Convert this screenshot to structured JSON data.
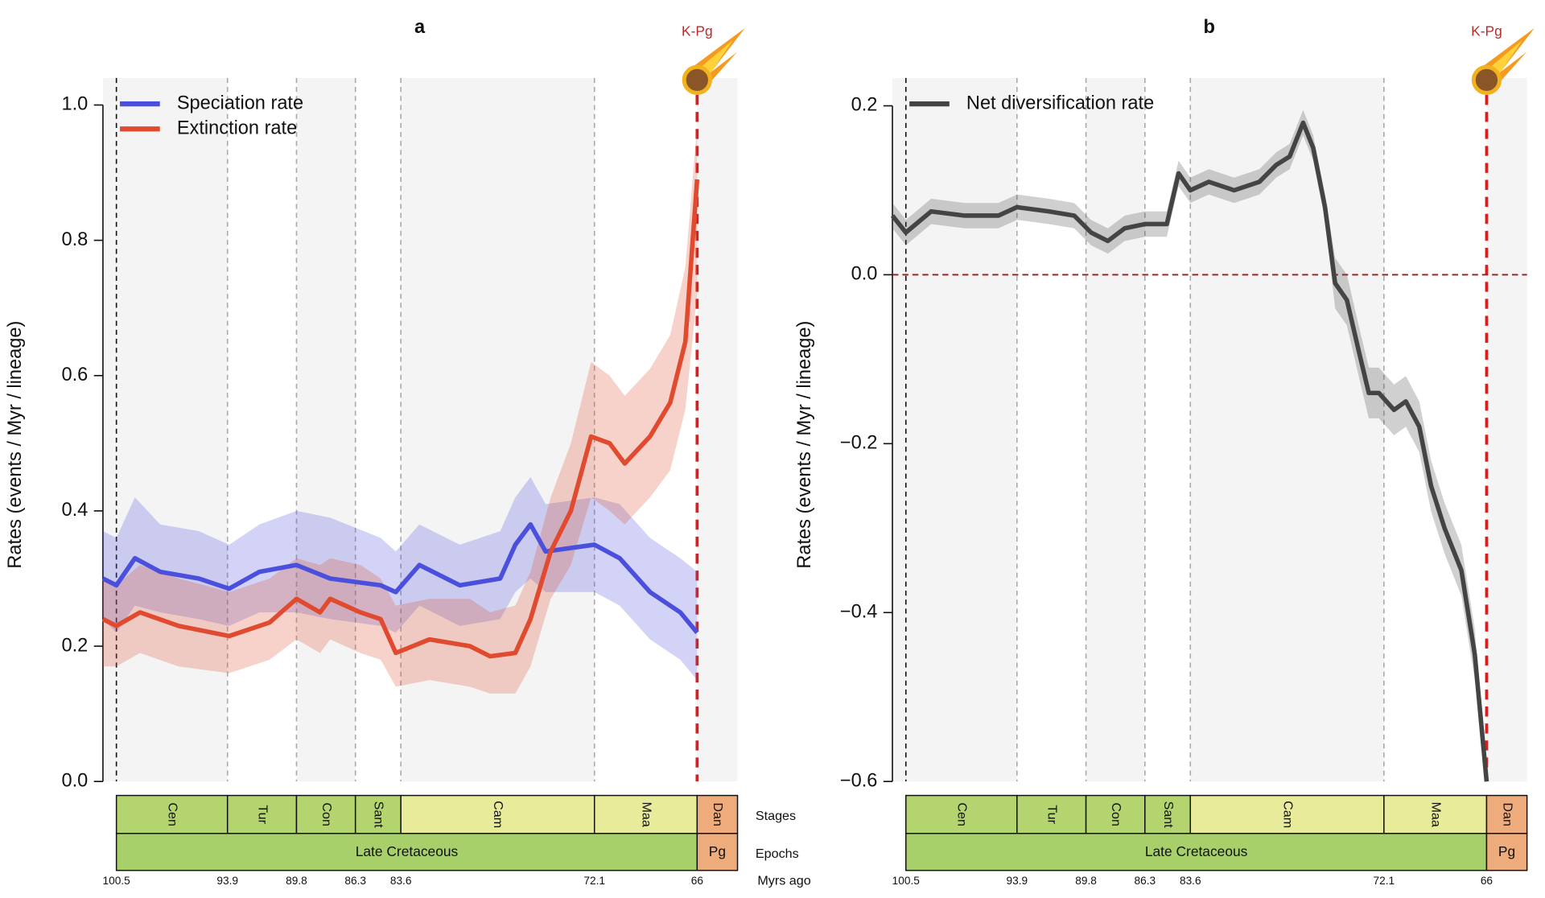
{
  "chart_data": [
    {
      "type": "line",
      "title": "a",
      "annotation": "K-Pg",
      "y_label": "Rates (events / Myr / lineage)",
      "stage_row_label": "Stages",
      "epoch_row_label": "Epochs",
      "x_unit_label": "Myrs ago",
      "xlim": [
        101.3,
        63.6
      ],
      "xticks": [
        100.5,
        93.9,
        89.8,
        86.3,
        83.6,
        72.1,
        66
      ],
      "ylim": [
        0,
        1.04
      ],
      "yticks": [
        {
          "value": 0,
          "label": "0.0"
        },
        0.2,
        0.4,
        0.6,
        0.8,
        {
          "value": 1,
          "label": "1.0"
        }
      ],
      "legend": "upper left",
      "background": "#f4f4f4",
      "stages": [
        {
          "name": "Cen",
          "start": 100.5,
          "color": "#b3d46f"
        },
        {
          "name": "Tur",
          "start": 93.9,
          "color": "#b3d46f"
        },
        {
          "name": "Con",
          "start": 89.8,
          "color": "#b3d46f"
        },
        {
          "name": "Sant",
          "start": 86.3,
          "color": "#b3d46f"
        },
        {
          "name": "Cam",
          "start": 83.6,
          "color": "#e8eb9a"
        },
        {
          "name": "Maa",
          "start": 72.1,
          "color": "#e8eb9a"
        },
        {
          "name": "Dan",
          "start": 66,
          "color": "#eeac7c"
        }
      ],
      "epochs": [
        {
          "name": "Late Cretaceous",
          "start": 100.5,
          "color": "#a8d06a"
        },
        {
          "name": "Pg",
          "start": 66,
          "color": "#eeac7c"
        }
      ],
      "series": [
        {
          "name": "Speciation rate",
          "color": "#4a4fdc",
          "x": [
            101.3,
            100.5,
            99.4,
            97.9,
            95.6,
            93.8,
            92,
            89.8,
            87.8,
            84.8,
            83.9,
            82.5,
            80.1,
            77.7,
            76.8,
            75.9,
            75,
            72.1,
            70.6,
            68.8,
            67,
            66
          ],
          "values": [
            0.3,
            0.29,
            0.33,
            0.31,
            0.3,
            0.285,
            0.31,
            0.32,
            0.3,
            0.29,
            0.28,
            0.32,
            0.29,
            0.3,
            0.35,
            0.38,
            0.34,
            0.35,
            0.33,
            0.28,
            0.25,
            0.22
          ],
          "lower": [
            0.24,
            0.22,
            0.26,
            0.25,
            0.24,
            0.23,
            0.25,
            0.25,
            0.24,
            0.23,
            0.22,
            0.26,
            0.23,
            0.24,
            0.28,
            0.3,
            0.28,
            0.28,
            0.26,
            0.21,
            0.18,
            0.15
          ],
          "upper": [
            0.37,
            0.36,
            0.42,
            0.38,
            0.37,
            0.35,
            0.38,
            0.4,
            0.39,
            0.36,
            0.34,
            0.38,
            0.35,
            0.37,
            0.42,
            0.45,
            0.41,
            0.42,
            0.41,
            0.36,
            0.33,
            0.31
          ]
        },
        {
          "name": "Extinction rate",
          "color": "#e04a2f",
          "x": [
            101.3,
            100.5,
            99.1,
            96.8,
            93.8,
            91.4,
            89.8,
            88.4,
            87.8,
            86,
            84.8,
            83.9,
            81.9,
            79.5,
            78.3,
            76.8,
            75.9,
            74.7,
            73.5,
            72.3,
            71.2,
            70.3,
            68.8,
            67.6,
            66.7,
            66
          ],
          "values": [
            0.24,
            0.23,
            0.25,
            0.23,
            0.215,
            0.235,
            0.27,
            0.25,
            0.27,
            0.25,
            0.24,
            0.19,
            0.21,
            0.2,
            0.185,
            0.19,
            0.24,
            0.34,
            0.4,
            0.51,
            0.5,
            0.47,
            0.51,
            0.56,
            0.65,
            0.89
          ],
          "lower": [
            0.17,
            0.17,
            0.19,
            0.17,
            0.16,
            0.18,
            0.21,
            0.19,
            0.21,
            0.19,
            0.18,
            0.14,
            0.15,
            0.14,
            0.13,
            0.13,
            0.17,
            0.27,
            0.32,
            0.42,
            0.4,
            0.38,
            0.42,
            0.46,
            0.55,
            0.72
          ],
          "upper": [
            0.3,
            0.29,
            0.32,
            0.3,
            0.28,
            0.3,
            0.33,
            0.32,
            0.33,
            0.32,
            0.3,
            0.26,
            0.27,
            0.27,
            0.25,
            0.26,
            0.31,
            0.42,
            0.5,
            0.62,
            0.6,
            0.57,
            0.61,
            0.66,
            0.76,
            0.97
          ]
        }
      ]
    },
    {
      "type": "line",
      "title": "b",
      "annotation": "K-Pg",
      "y_label": "Rates (events / Myr / lineage)",
      "xlim": [
        101.3,
        63.6
      ],
      "xticks": [
        100.5,
        93.9,
        89.8,
        86.3,
        83.6,
        72.1,
        66
      ],
      "ylim": [
        -0.6,
        0.233
      ],
      "yticks": [
        {
          "value": -0.6,
          "label": "−0.6"
        },
        {
          "value": -0.4,
          "label": "−0.4"
        },
        {
          "value": -0.2,
          "label": "−0.2"
        },
        {
          "value": 0,
          "label": "0.0"
        },
        0.2
      ],
      "reference_line": 0,
      "legend": "upper left",
      "background": "#f4f4f4",
      "stages": [
        {
          "name": "Cen",
          "start": 100.5,
          "color": "#b3d46f"
        },
        {
          "name": "Tur",
          "start": 93.9,
          "color": "#b3d46f"
        },
        {
          "name": "Con",
          "start": 89.8,
          "color": "#b3d46f"
        },
        {
          "name": "Sant",
          "start": 86.3,
          "color": "#b3d46f"
        },
        {
          "name": "Cam",
          "start": 83.6,
          "color": "#e8eb9a"
        },
        {
          "name": "Maa",
          "start": 72.1,
          "color": "#e8eb9a"
        },
        {
          "name": "Dan",
          "start": 66,
          "color": "#eeac7c"
        }
      ],
      "epochs": [
        {
          "name": "Late Cretaceous",
          "start": 100.5,
          "color": "#a8d06a"
        },
        {
          "name": "Pg",
          "start": 66,
          "color": "#eeac7c"
        }
      ],
      "series": [
        {
          "name": "Net diversification rate",
          "color": "#444444",
          "x": [
            101.3,
            100.5,
            99,
            97,
            95,
            93.9,
            92,
            90.5,
            89.5,
            88.5,
            87.5,
            86.3,
            85,
            84.3,
            83.6,
            82.5,
            81,
            79.5,
            78.5,
            77.7,
            76.9,
            76.3,
            75.6,
            75,
            74.3,
            73.6,
            73,
            72.4,
            71.5,
            70.8,
            70,
            69.3,
            68.5,
            67.5,
            66.7,
            66
          ],
          "values": [
            0.07,
            0.05,
            0.075,
            0.07,
            0.07,
            0.08,
            0.075,
            0.07,
            0.05,
            0.04,
            0.055,
            0.06,
            0.06,
            0.12,
            0.1,
            0.11,
            0.1,
            0.11,
            0.13,
            0.14,
            0.18,
            0.15,
            0.08,
            -0.01,
            -0.03,
            -0.09,
            -0.14,
            -0.14,
            -0.16,
            -0.15,
            -0.18,
            -0.25,
            -0.3,
            -0.35,
            -0.45,
            -0.6
          ],
          "lower": [
            0.055,
            0.035,
            0.06,
            0.055,
            0.055,
            0.065,
            0.06,
            0.055,
            0.035,
            0.025,
            0.04,
            0.045,
            0.045,
            0.105,
            0.085,
            0.095,
            0.085,
            0.095,
            0.115,
            0.125,
            0.165,
            0.135,
            0.065,
            -0.04,
            -0.06,
            -0.12,
            -0.17,
            -0.17,
            -0.19,
            -0.18,
            -0.21,
            -0.28,
            -0.33,
            -0.38,
            -0.48,
            -0.6
          ],
          "upper": [
            0.085,
            0.065,
            0.09,
            0.085,
            0.085,
            0.095,
            0.09,
            0.085,
            0.065,
            0.055,
            0.07,
            0.075,
            0.075,
            0.135,
            0.115,
            0.125,
            0.115,
            0.125,
            0.145,
            0.155,
            0.195,
            0.165,
            0.095,
            0.02,
            0.0,
            -0.06,
            -0.11,
            -0.11,
            -0.13,
            -0.12,
            -0.15,
            -0.22,
            -0.27,
            -0.32,
            -0.42,
            -0.6
          ]
        }
      ]
    }
  ]
}
